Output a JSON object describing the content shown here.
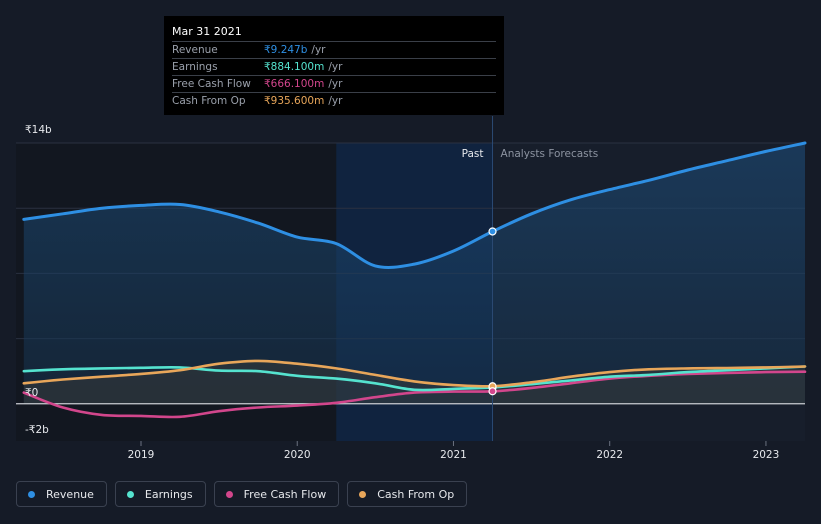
{
  "tooltip": {
    "date": "Mar 31 2021",
    "rows": [
      {
        "label": "Revenue",
        "value": "₹9.247b",
        "unit": "/yr",
        "color": "#2e8fe3"
      },
      {
        "label": "Earnings",
        "value": "₹884.100m",
        "unit": "/yr",
        "color": "#55e3cf"
      },
      {
        "label": "Free Cash Flow",
        "value": "₹666.100m",
        "unit": "/yr",
        "color": "#d2468c"
      },
      {
        "label": "Cash From Op",
        "value": "₹935.600m",
        "unit": "/yr",
        "color": "#e8a65a"
      }
    ]
  },
  "labels": {
    "past": "Past",
    "forecast": "Analysts Forecasts"
  },
  "legend": [
    {
      "label": "Revenue",
      "color": "#2e8fe3"
    },
    {
      "label": "Earnings",
      "color": "#55e3cf"
    },
    {
      "label": "Free Cash Flow",
      "color": "#d2468c"
    },
    {
      "label": "Cash From Op",
      "color": "#e8a65a"
    }
  ],
  "chart_data": {
    "type": "line",
    "ylim": [
      -2,
      14
    ],
    "xlim": [
      2018.2,
      2023.25
    ],
    "y_ticks": [
      {
        "value": 14,
        "label": "₹14b"
      },
      {
        "value": 0,
        "label": "₹0"
      },
      {
        "value": -2,
        "label": "-₹2b"
      }
    ],
    "x_ticks": [
      {
        "value": 2019,
        "label": "2019"
      },
      {
        "value": 2020,
        "label": "2020"
      },
      {
        "value": 2021,
        "label": "2021"
      },
      {
        "value": 2022,
        "label": "2022"
      },
      {
        "value": 2023,
        "label": "2023"
      }
    ],
    "past_end": 2021.25,
    "shade_start": 2020.25,
    "highlight_x": 2021.25,
    "series": [
      {
        "name": "Revenue",
        "color": "#2e8fe3",
        "fill": true,
        "x": [
          2018.25,
          2018.5,
          2018.75,
          2019.0,
          2019.25,
          2019.5,
          2019.75,
          2020.0,
          2020.25,
          2020.5,
          2020.75,
          2021.0,
          2021.25,
          2021.5,
          2021.75,
          2022.0,
          2022.25,
          2022.5,
          2022.75,
          2023.0,
          2023.25
        ],
        "y": [
          9.9,
          10.2,
          10.5,
          10.65,
          10.7,
          10.3,
          9.7,
          8.95,
          8.6,
          7.4,
          7.5,
          8.2,
          9.25,
          10.2,
          10.95,
          11.5,
          12.0,
          12.55,
          13.05,
          13.55,
          14.0
        ]
      },
      {
        "name": "Earnings",
        "color": "#55e3cf",
        "fill": false,
        "x": [
          2018.25,
          2018.5,
          2018.75,
          2019.0,
          2019.25,
          2019.5,
          2019.75,
          2020.0,
          2020.25,
          2020.5,
          2020.75,
          2021.0,
          2021.25,
          2021.5,
          2021.75,
          2022.0,
          2022.25,
          2022.5,
          2022.75,
          2023.0,
          2023.25
        ],
        "y": [
          1.75,
          1.85,
          1.9,
          1.93,
          1.95,
          1.78,
          1.75,
          1.5,
          1.35,
          1.1,
          0.75,
          0.8,
          0.88,
          1.05,
          1.25,
          1.45,
          1.55,
          1.7,
          1.8,
          1.9,
          2.0
        ]
      },
      {
        "name": "Free Cash Flow",
        "color": "#d2468c",
        "fill": false,
        "x": [
          2018.25,
          2018.5,
          2018.75,
          2019.0,
          2019.25,
          2019.5,
          2019.75,
          2020.0,
          2020.25,
          2020.5,
          2020.75,
          2021.0,
          2021.25,
          2021.5,
          2021.75,
          2022.0,
          2022.25,
          2022.5,
          2022.75,
          2023.0,
          2023.25
        ],
        "y": [
          0.6,
          -0.2,
          -0.6,
          -0.65,
          -0.7,
          -0.4,
          -0.2,
          -0.1,
          0.05,
          0.35,
          0.6,
          0.65,
          0.67,
          0.85,
          1.1,
          1.35,
          1.5,
          1.6,
          1.65,
          1.7,
          1.72
        ]
      },
      {
        "name": "Cash From Op",
        "color": "#e8a65a",
        "fill": false,
        "x": [
          2018.25,
          2018.5,
          2018.75,
          2019.0,
          2019.25,
          2019.5,
          2019.75,
          2020.0,
          2020.25,
          2020.5,
          2020.75,
          2021.0,
          2021.25,
          2021.5,
          2021.75,
          2022.0,
          2022.25,
          2022.5,
          2022.75,
          2023.0,
          2023.25
        ],
        "y": [
          1.1,
          1.3,
          1.45,
          1.6,
          1.8,
          2.15,
          2.3,
          2.15,
          1.9,
          1.55,
          1.2,
          1.0,
          0.94,
          1.15,
          1.45,
          1.7,
          1.85,
          1.9,
          1.92,
          1.95,
          2.0
        ]
      }
    ]
  }
}
